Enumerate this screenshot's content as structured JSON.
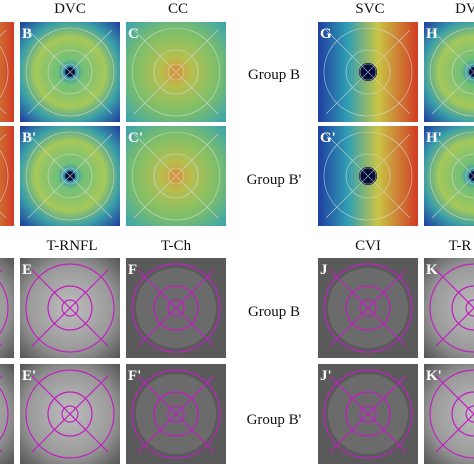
{
  "top_left": {
    "columns": [
      "DVC",
      "CC"
    ],
    "panels": [
      "B",
      "C",
      "B'",
      "C'"
    ]
  },
  "top_right": {
    "columns": [
      "SVC",
      "DV"
    ],
    "panels": [
      "G",
      "H",
      "G'",
      "H'"
    ],
    "groups": [
      "Group B",
      "Group B'"
    ]
  },
  "bottom_left": {
    "columns": [
      "T-RNFL",
      "T-Ch"
    ],
    "panels": [
      "E",
      "F",
      "E'",
      "F'"
    ]
  },
  "bottom_right": {
    "columns": [
      "CVI",
      "T-R"
    ],
    "panels": [
      "J",
      "K",
      "J'",
      "K'"
    ],
    "groups": [
      "Group B",
      "Group B'"
    ]
  }
}
